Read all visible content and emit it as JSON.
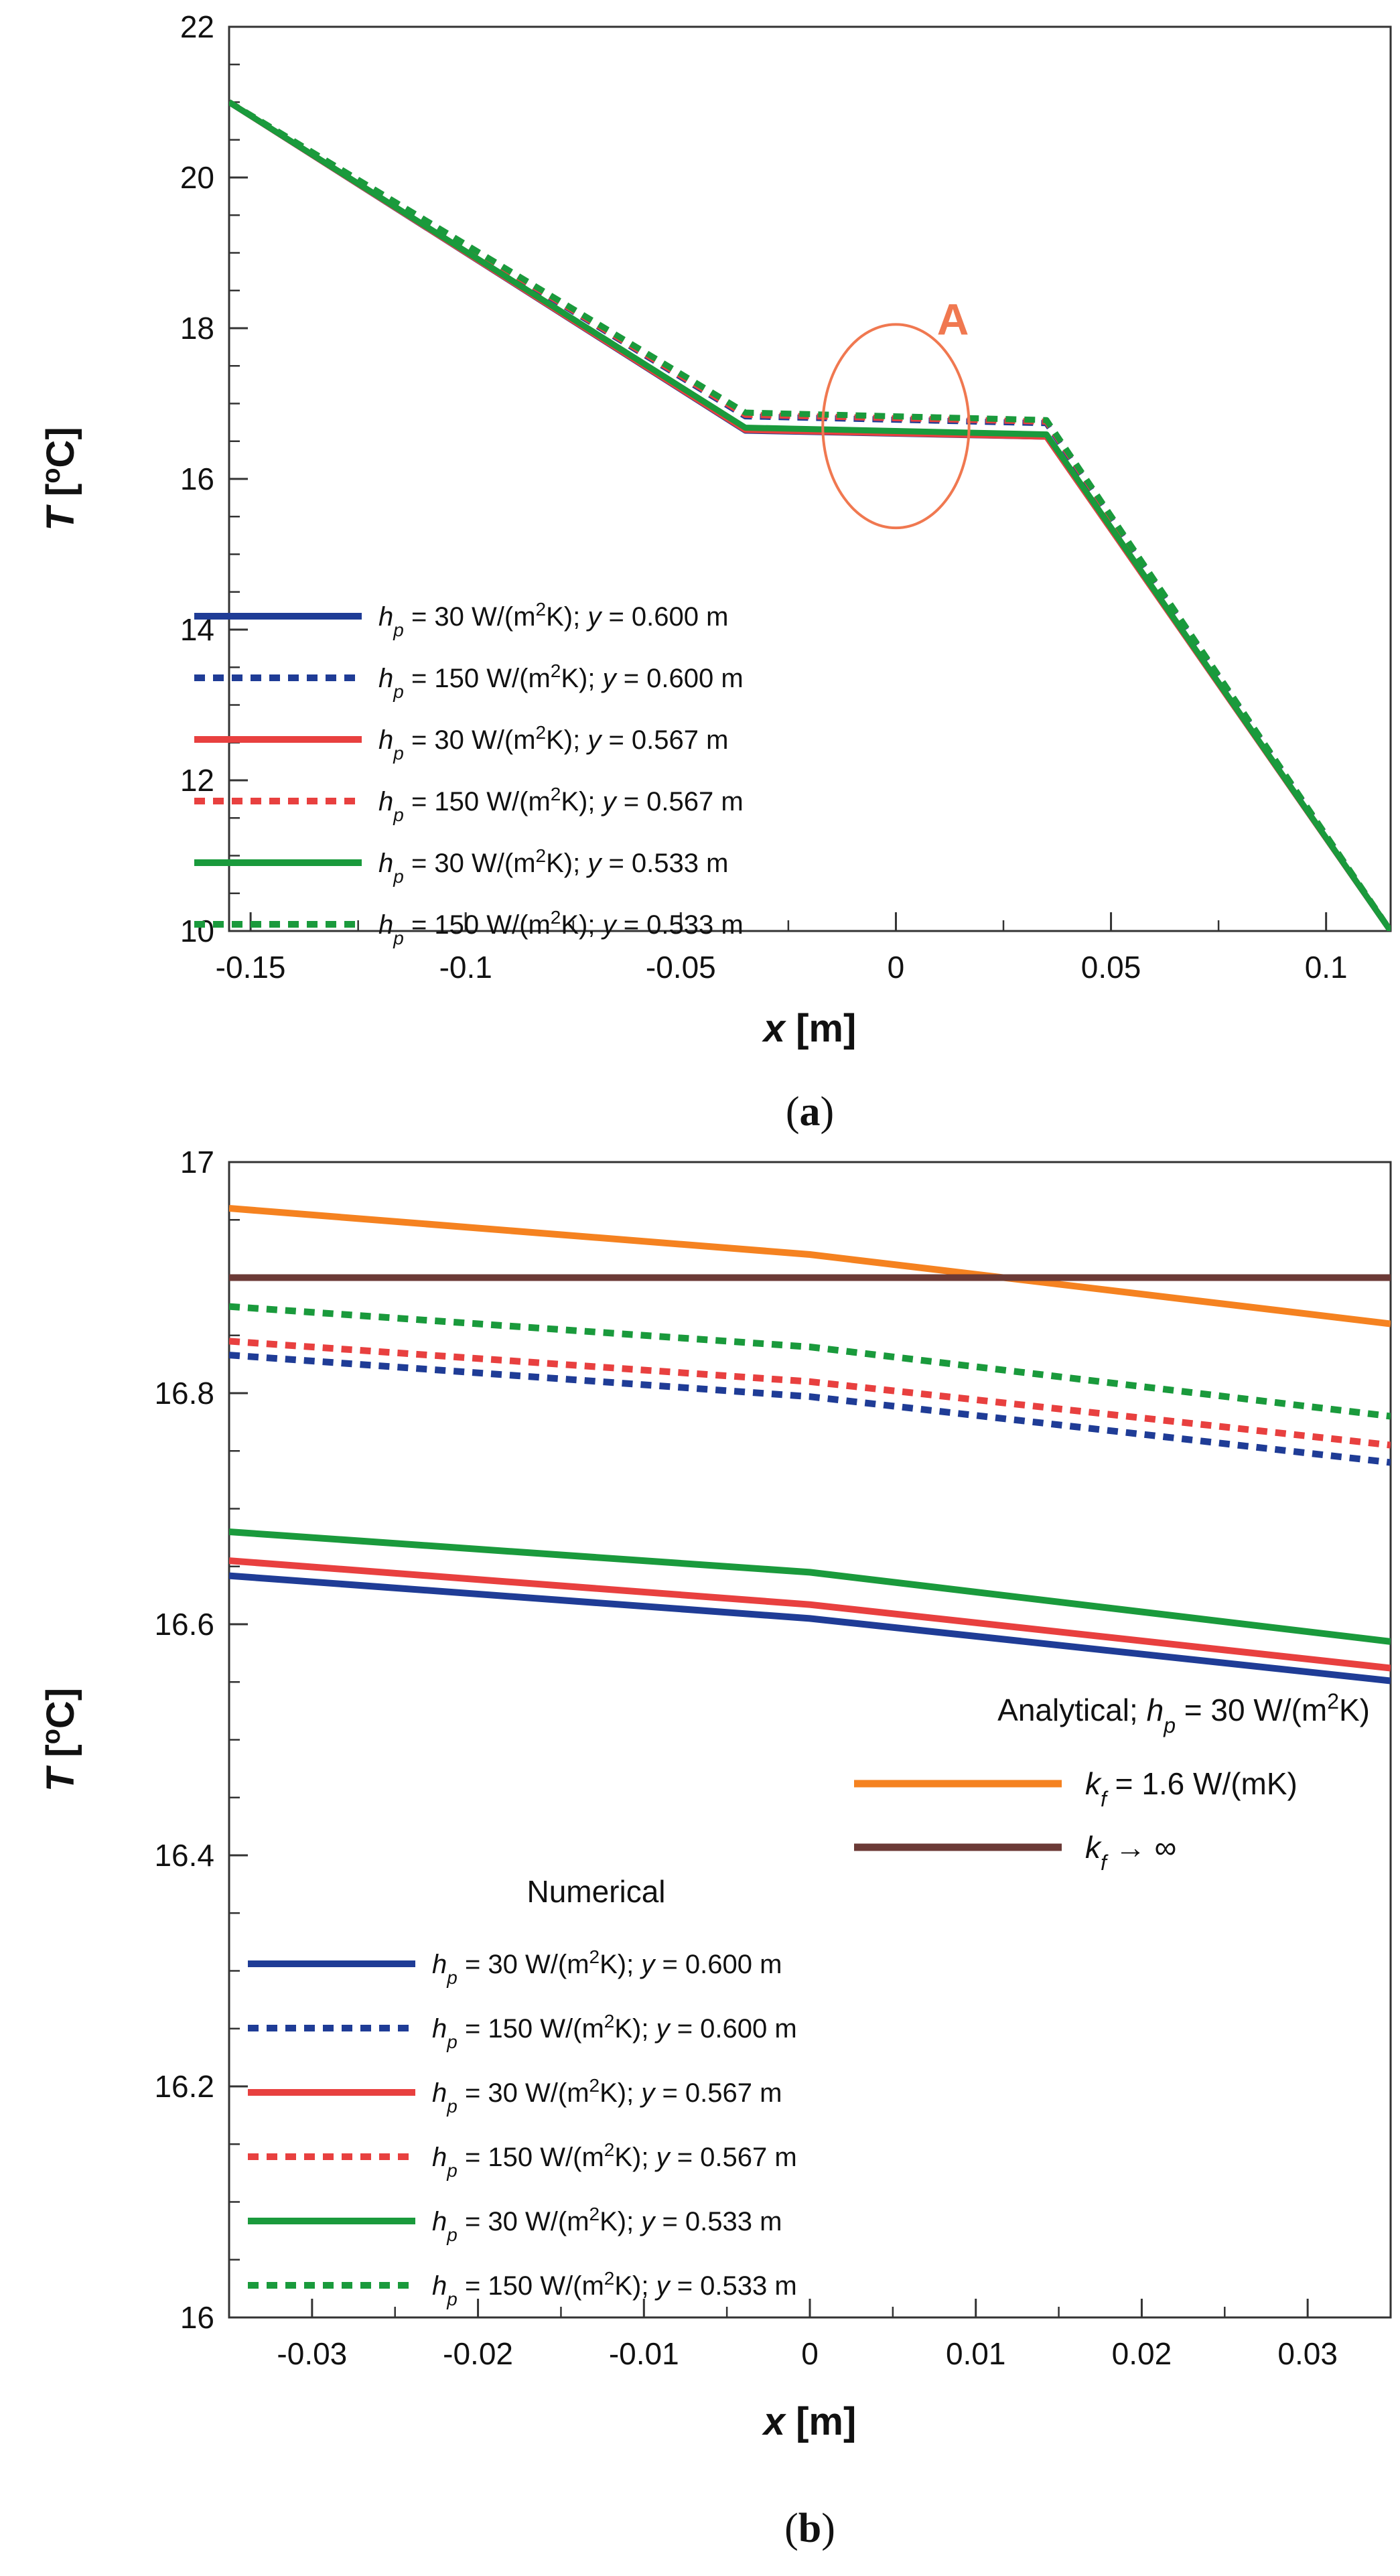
{
  "colors": {
    "blue": "#1f3c96",
    "red": "#e8403f",
    "green": "#1a9a3c",
    "orange": "#f58220",
    "brown": "#6b3a36",
    "annotation": "#F07850"
  },
  "chart_data": [
    {
      "type": "line",
      "caption": "a",
      "xlabel": "x [m]",
      "ylabel": "T [oC]",
      "xlim": [
        -0.155,
        0.115
      ],
      "ylim": [
        10,
        22
      ],
      "xticks": [
        -0.15,
        -0.1,
        -0.05,
        0,
        0.05,
        0.1
      ],
      "xtick_labels": [
        "-0.15",
        "-0.1",
        "-0.05",
        "0",
        "0.05",
        "0.1"
      ],
      "yticks": [
        10,
        12,
        14,
        16,
        18,
        20,
        22
      ],
      "ytick_labels": [
        "10",
        "12",
        "14",
        "16",
        "18",
        "20",
        "22"
      ],
      "annotation": {
        "label": "A",
        "cx": 0.0,
        "cy": 16.7,
        "rx": 0.017,
        "ry": 1.35
      },
      "legend": {
        "position": "lower-left",
        "entries": [
          {
            "h": "h",
            "sub": "p",
            "main": " = 30 W/(m",
            "sup": "2",
            "rest": "K);   ",
            "yv": "y",
            "val": " = 0.600 m",
            "color": "blue",
            "dash": false
          },
          {
            "h": "h",
            "sub": "p",
            "main": " = 150 W/(m",
            "sup": "2",
            "rest": "K); ",
            "yv": "y",
            "val": " = 0.600 m",
            "color": "blue",
            "dash": true
          },
          {
            "h": "h",
            "sub": "p",
            "main": " = 30 W/(m",
            "sup": "2",
            "rest": "K);   ",
            "yv": "y",
            "val": " = 0.567 m",
            "color": "red",
            "dash": false
          },
          {
            "h": "h",
            "sub": "p",
            "main": " = 150 W/(m",
            "sup": "2",
            "rest": "K); ",
            "yv": "y",
            "val": " = 0.567 m",
            "color": "red",
            "dash": true
          },
          {
            "h": "h",
            "sub": "p",
            "main": " = 30 W/(m",
            "sup": "2",
            "rest": "K);   ",
            "yv": "y",
            "val": " = 0.533 m",
            "color": "green",
            "dash": false
          },
          {
            "h": "h",
            "sub": "p",
            "main": " = 150 W/(m",
            "sup": "2",
            "rest": "K); ",
            "yv": "y",
            "val": " = 0.533 m",
            "color": "green",
            "dash": true
          }
        ]
      },
      "series": [
        {
          "name": "hp = 30 W/(m2K); y = 0.600 m",
          "color": "blue",
          "dash": false,
          "x": [
            -0.155,
            -0.035,
            0.035,
            0.115
          ],
          "y": [
            21.0,
            16.64,
            16.56,
            10.0
          ]
        },
        {
          "name": "hp = 150 W/(m2K); y = 0.600 m",
          "color": "blue",
          "dash": true,
          "x": [
            -0.155,
            -0.035,
            0.035,
            0.115
          ],
          "y": [
            21.0,
            16.83,
            16.74,
            10.0
          ]
        },
        {
          "name": "hp = 30 W/(m2K); y = 0.567 m",
          "color": "red",
          "dash": false,
          "x": [
            -0.155,
            -0.035,
            0.035,
            0.115
          ],
          "y": [
            21.0,
            16.65,
            16.56,
            10.0
          ]
        },
        {
          "name": "hp = 150 W/(m2K); y = 0.567 m",
          "color": "red",
          "dash": true,
          "x": [
            -0.155,
            -0.035,
            0.035,
            0.115
          ],
          "y": [
            21.0,
            16.85,
            16.76,
            10.0
          ]
        },
        {
          "name": "hp = 30 W/(m2K); y = 0.533 m",
          "color": "green",
          "dash": false,
          "x": [
            -0.155,
            -0.035,
            0.035,
            0.115
          ],
          "y": [
            21.0,
            16.68,
            16.59,
            10.0
          ]
        },
        {
          "name": "hp = 150 W/(m2K); y = 0.533 m",
          "color": "green",
          "dash": true,
          "x": [
            -0.155,
            -0.035,
            0.035,
            0.115
          ],
          "y": [
            21.0,
            16.88,
            16.78,
            10.0
          ]
        }
      ]
    },
    {
      "type": "line",
      "caption": "b",
      "xlabel": "x [m]",
      "ylabel": "T [oC]",
      "xlim": [
        -0.035,
        0.035
      ],
      "ylim": [
        16.0,
        17.0
      ],
      "xticks": [
        -0.03,
        -0.02,
        -0.01,
        0,
        0.01,
        0.02,
        0.03
      ],
      "xtick_labels": [
        "-0.03",
        "-0.02",
        "-0.01",
        "0",
        "0.01",
        "0.02",
        "0.03"
      ],
      "yticks": [
        16.0,
        16.2,
        16.4,
        16.6,
        16.8,
        17.0
      ],
      "ytick_labels": [
        "16",
        "16.2",
        "16.4",
        "16.6",
        "16.8",
        "17"
      ],
      "legend_analytical": {
        "position": "right",
        "title_pre": "Analytical; ",
        "title_h": "h",
        "title_sub": "p",
        "title_post": " = 30 W/(m",
        "title_sup": "2",
        "title_end": "K)",
        "entries": [
          {
            "k": "k",
            "sub": "f",
            "rest": " = 1.6 W/(mK)",
            "color": "orange"
          },
          {
            "k": "k",
            "sub": "f",
            "rest": " → ∞",
            "color": "brown"
          }
        ]
      },
      "legend_numerical": {
        "position": "lower-left",
        "title": "Numerical",
        "entries": [
          {
            "h": "h",
            "sub": "p",
            "main": " = 30 W/(m",
            "sup": "2",
            "rest": "K);   ",
            "yv": "y",
            "val": " = 0.600 m",
            "color": "blue",
            "dash": false
          },
          {
            "h": "h",
            "sub": "p",
            "main": " = 150 W/(m",
            "sup": "2",
            "rest": "K); ",
            "yv": "y",
            "val": " = 0.600 m",
            "color": "blue",
            "dash": true
          },
          {
            "h": "h",
            "sub": "p",
            "main": " = 30 W/(m",
            "sup": "2",
            "rest": "K);   ",
            "yv": "y",
            "val": " = 0.567 m",
            "color": "red",
            "dash": false
          },
          {
            "h": "h",
            "sub": "p",
            "main": " = 150 W/(m",
            "sup": "2",
            "rest": "K); ",
            "yv": "y",
            "val": " = 0.567 m",
            "color": "red",
            "dash": true
          },
          {
            "h": "h",
            "sub": "p",
            "main": " = 30 W/(m",
            "sup": "2",
            "rest": "K);   ",
            "yv": "y",
            "val": " = 0.533 m",
            "color": "green",
            "dash": false
          },
          {
            "h": "h",
            "sub": "p",
            "main": " = 150 W/(m",
            "sup": "2",
            "rest": "K); ",
            "yv": "y",
            "val": " = 0.533 m",
            "color": "green",
            "dash": true
          }
        ]
      },
      "series": [
        {
          "name": "Analytical kf = 1.6 W/(mK)",
          "color": "orange",
          "dash": false,
          "x": [
            -0.035,
            0.0,
            0.035
          ],
          "y": [
            16.96,
            16.92,
            16.86
          ]
        },
        {
          "name": "Analytical kf -> infinity",
          "color": "brown",
          "dash": false,
          "x": [
            -0.035,
            0.035
          ],
          "y": [
            16.9,
            16.9
          ]
        },
        {
          "name": "hp = 150 W/(m2K); y = 0.533 m",
          "color": "green",
          "dash": true,
          "x": [
            -0.035,
            0.0,
            0.035
          ],
          "y": [
            16.875,
            16.84,
            16.78
          ]
        },
        {
          "name": "hp = 150 W/(m2K); y = 0.567 m",
          "color": "red",
          "dash": true,
          "x": [
            -0.035,
            0.0,
            0.035
          ],
          "y": [
            16.845,
            16.81,
            16.755
          ]
        },
        {
          "name": "hp = 150 W/(m2K); y = 0.600 m",
          "color": "blue",
          "dash": true,
          "x": [
            -0.035,
            0.0,
            0.035
          ],
          "y": [
            16.833,
            16.797,
            16.74
          ]
        },
        {
          "name": "hp = 30 W/(m2K); y = 0.533 m",
          "color": "green",
          "dash": false,
          "x": [
            -0.035,
            0.0,
            0.035
          ],
          "y": [
            16.68,
            16.645,
            16.585
          ]
        },
        {
          "name": "hp = 30 W/(m2K); y = 0.567 m",
          "color": "red",
          "dash": false,
          "x": [
            -0.035,
            0.0,
            0.035
          ],
          "y": [
            16.655,
            16.617,
            16.562
          ]
        },
        {
          "name": "hp = 30 W/(m2K); y = 0.600 m",
          "color": "blue",
          "dash": false,
          "x": [
            -0.035,
            0.0,
            0.035
          ],
          "y": [
            16.642,
            16.605,
            16.551
          ]
        }
      ]
    }
  ]
}
